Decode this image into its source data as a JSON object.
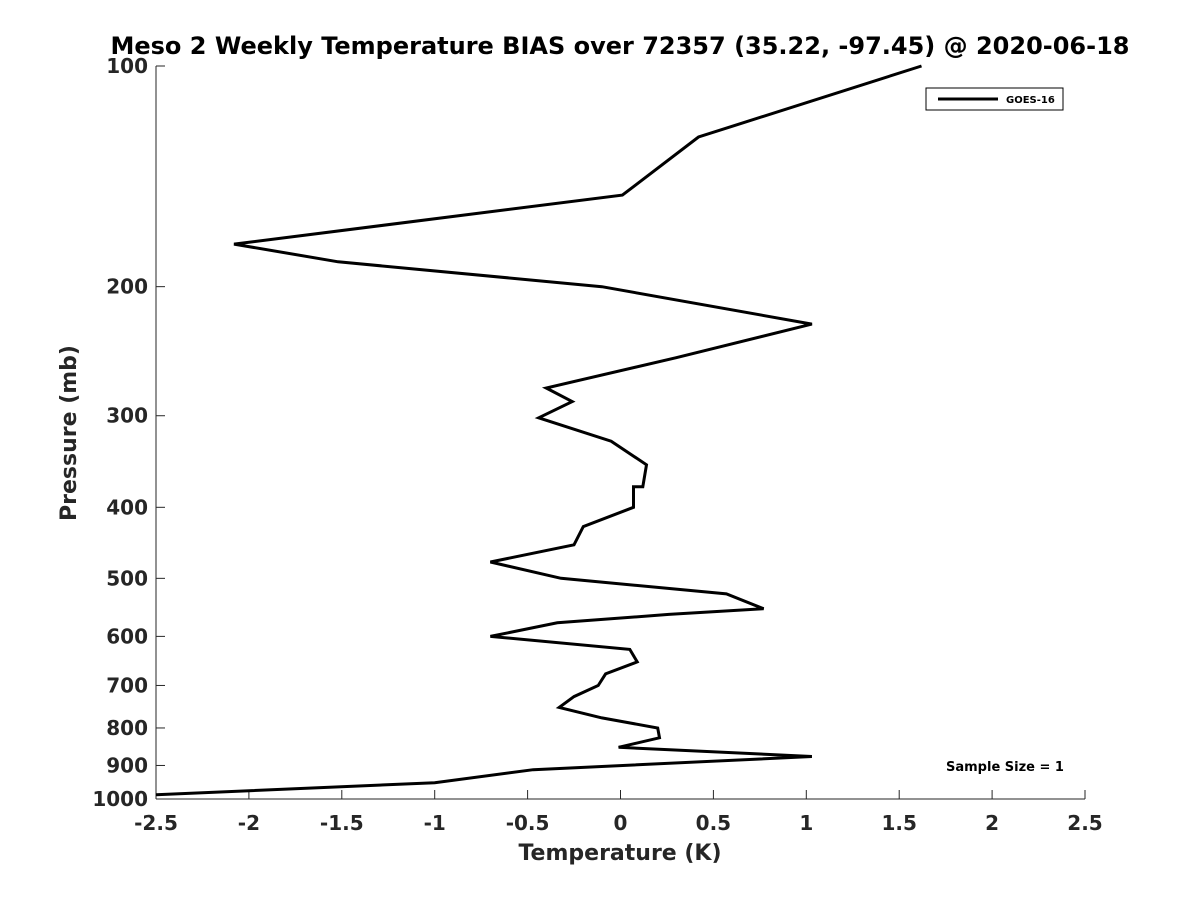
{
  "chart_data": {
    "type": "line",
    "title": "Meso 2 Weekly Temperature BIAS over 72357 (35.22, -97.45) @ 2020-06-18",
    "xlabel": "Temperature (K)",
    "ylabel": "Pressure (mb)",
    "xlim": [
      -2.5,
      2.5
    ],
    "ylim": [
      100,
      1000
    ],
    "y_scale": "log",
    "y_reversed": true,
    "x_ticks": [
      -2.5,
      -2,
      -1.5,
      -1,
      -0.5,
      0,
      0.5,
      1,
      1.5,
      2,
      2.5
    ],
    "x_tick_labels": [
      "-2.5",
      "-2",
      "-1.5",
      "-1",
      "-0.5",
      "0",
      "0.5",
      "1",
      "1.5",
      "2",
      "2.5"
    ],
    "y_ticks": [
      100,
      200,
      300,
      400,
      500,
      600,
      700,
      800,
      900,
      1000
    ],
    "y_tick_labels": [
      "100",
      "200",
      "300",
      "400",
      "500",
      "600",
      "700",
      "800",
      "900",
      "1000"
    ],
    "grid": false,
    "legend_position": "top-right",
    "series": [
      {
        "name": "GOES-16",
        "color": "#000000",
        "x": [
          1.62,
          0.42,
          0.01,
          -2.08,
          -1.52,
          -0.1,
          1.03,
          0.3,
          -0.4,
          -0.26,
          -0.44,
          -0.05,
          0.14,
          0.12,
          0.07,
          0.07,
          -0.2,
          -0.25,
          -0.7,
          -0.32,
          0.57,
          0.77,
          0.26,
          -0.34,
          -0.7,
          0.05,
          0.09,
          -0.08,
          -0.12,
          -0.25,
          -0.33,
          -0.1,
          0.2,
          0.21,
          -0.01,
          1.03,
          -0.47,
          -1.0,
          -2.5
        ],
        "y": [
          100,
          125,
          150,
          175,
          185,
          200,
          225,
          250,
          275,
          287,
          302,
          325,
          350,
          375,
          375,
          400,
          425,
          450,
          475,
          500,
          525,
          550,
          560,
          575,
          600,
          625,
          650,
          675,
          700,
          725,
          750,
          775,
          800,
          825,
          850,
          875,
          912,
          950,
          987
        ]
      }
    ],
    "annotations": [
      "Sample Size = 1"
    ]
  }
}
